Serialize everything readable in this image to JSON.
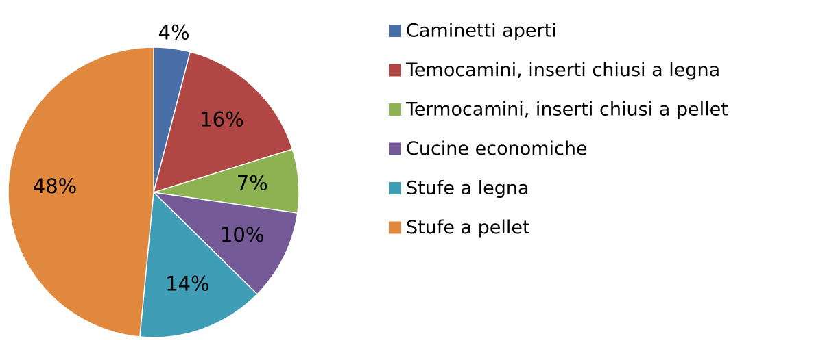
{
  "chart_data": {
    "type": "pie",
    "categories": [
      "Caminetti aperti",
      "Temocamini, inserti chiusi a legna",
      "Termocamini, inserti chiusi a pellet",
      "Cucine economiche",
      "Stufe a legna",
      "Stufe a pellet"
    ],
    "values": [
      4,
      16,
      7,
      10,
      14,
      48
    ],
    "value_labels": [
      "4%",
      "16%",
      "7%",
      "10%",
      "14%",
      "48%"
    ],
    "colors": [
      "#4a6fa8",
      "#b04744",
      "#8db251",
      "#745a96",
      "#3f9db6",
      "#e0883e"
    ],
    "legend": "right"
  }
}
